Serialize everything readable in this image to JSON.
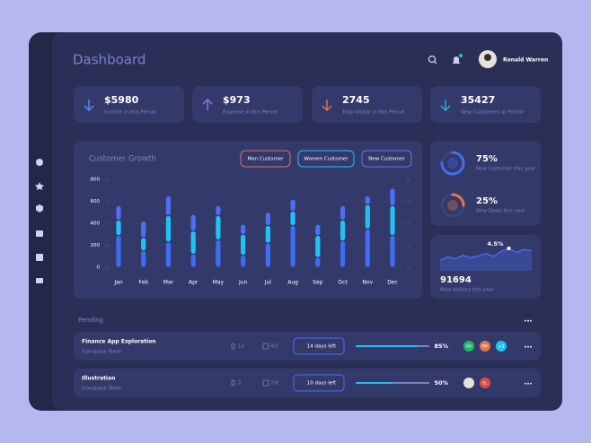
{
  "header": {
    "title": "Dashboard",
    "user": "Ronald Warren"
  },
  "stats": [
    {
      "value": "$5980",
      "label": "Income in this Period",
      "trend": "down",
      "color": "#5b8ef5"
    },
    {
      "value": "$973",
      "label": "Expense in this Period",
      "trend": "up",
      "color": "#9b6cf5"
    },
    {
      "value": "2745",
      "label": "Total Visitor in this Period",
      "trend": "down",
      "color": "#e2764e"
    },
    {
      "value": "35427",
      "label": "New Customers at Period",
      "trend": "down",
      "color": "#22b8e0"
    }
  ],
  "chart_data": {
    "type": "bar",
    "stacked": true,
    "title": "Customer Growth",
    "categories": [
      "Jan",
      "Feb",
      "Mar",
      "Apr",
      "May",
      "Jun",
      "Jul",
      "Aug",
      "Sep",
      "Oct",
      "Nov",
      "Dec"
    ],
    "series": [
      {
        "name": "Man Customer",
        "color": "#3f6cf2",
        "border": "#e06c6c",
        "values": [
          290,
          150,
          230,
          120,
          250,
          110,
          220,
          380,
          90,
          240,
          350,
          290
        ]
      },
      {
        "name": "Women Customer",
        "color": "#1ec3f4",
        "border": "#22c4ee",
        "values": [
          140,
          120,
          240,
          210,
          220,
          190,
          160,
          130,
          200,
          190,
          220,
          270
        ]
      },
      {
        "name": "New Customer",
        "color": "#4d6ef5",
        "border": "#6177e8",
        "values": [
          130,
          150,
          180,
          150,
          90,
          90,
          120,
          110,
          100,
          130,
          80,
          160
        ]
      }
    ],
    "ylim": [
      0,
      800
    ],
    "yticks": [
      0,
      200,
      400,
      600,
      800
    ],
    "grid": true
  },
  "goals": [
    {
      "value": 75,
      "value_label": "75%",
      "label": "New Customer this year",
      "color": "#3f6ef3"
    },
    {
      "value": 25,
      "value_label": "25%",
      "label": "New Deals this year",
      "color": "#e2764e"
    }
  ],
  "visitors": {
    "type": "area",
    "values": [
      35,
      48,
      40,
      55,
      45,
      52,
      62,
      50,
      70,
      82,
      66,
      78,
      72
    ],
    "ylim": [
      0,
      100
    ],
    "peak": {
      "index": 9,
      "label": "4.5%"
    },
    "total": "91694",
    "label": "New Visitors this year",
    "color": "#4d6ef5"
  },
  "pending": {
    "title": "Pending",
    "tasks": [
      {
        "name": "Finance App Exploration",
        "team": "Iconspace Team",
        "attachments": "13",
        "checks": "4/5",
        "due": "14 days left",
        "progress": 85,
        "progress_label": "85%",
        "members": [
          {
            "initials": "KA",
            "color": "#1fb86b"
          },
          {
            "initials": "RR",
            "color": "#e2764e"
          },
          {
            "initials": "+3",
            "color": "#1ec3f4"
          }
        ]
      },
      {
        "name": "Illustration",
        "team": "Iconspace Team",
        "attachments": "2",
        "checks": "7/8",
        "due": "10 days left",
        "progress": 50,
        "progress_label": "50%",
        "members": [
          {
            "initials": "EL",
            "color": "#e04a4a"
          }
        ]
      }
    ]
  }
}
